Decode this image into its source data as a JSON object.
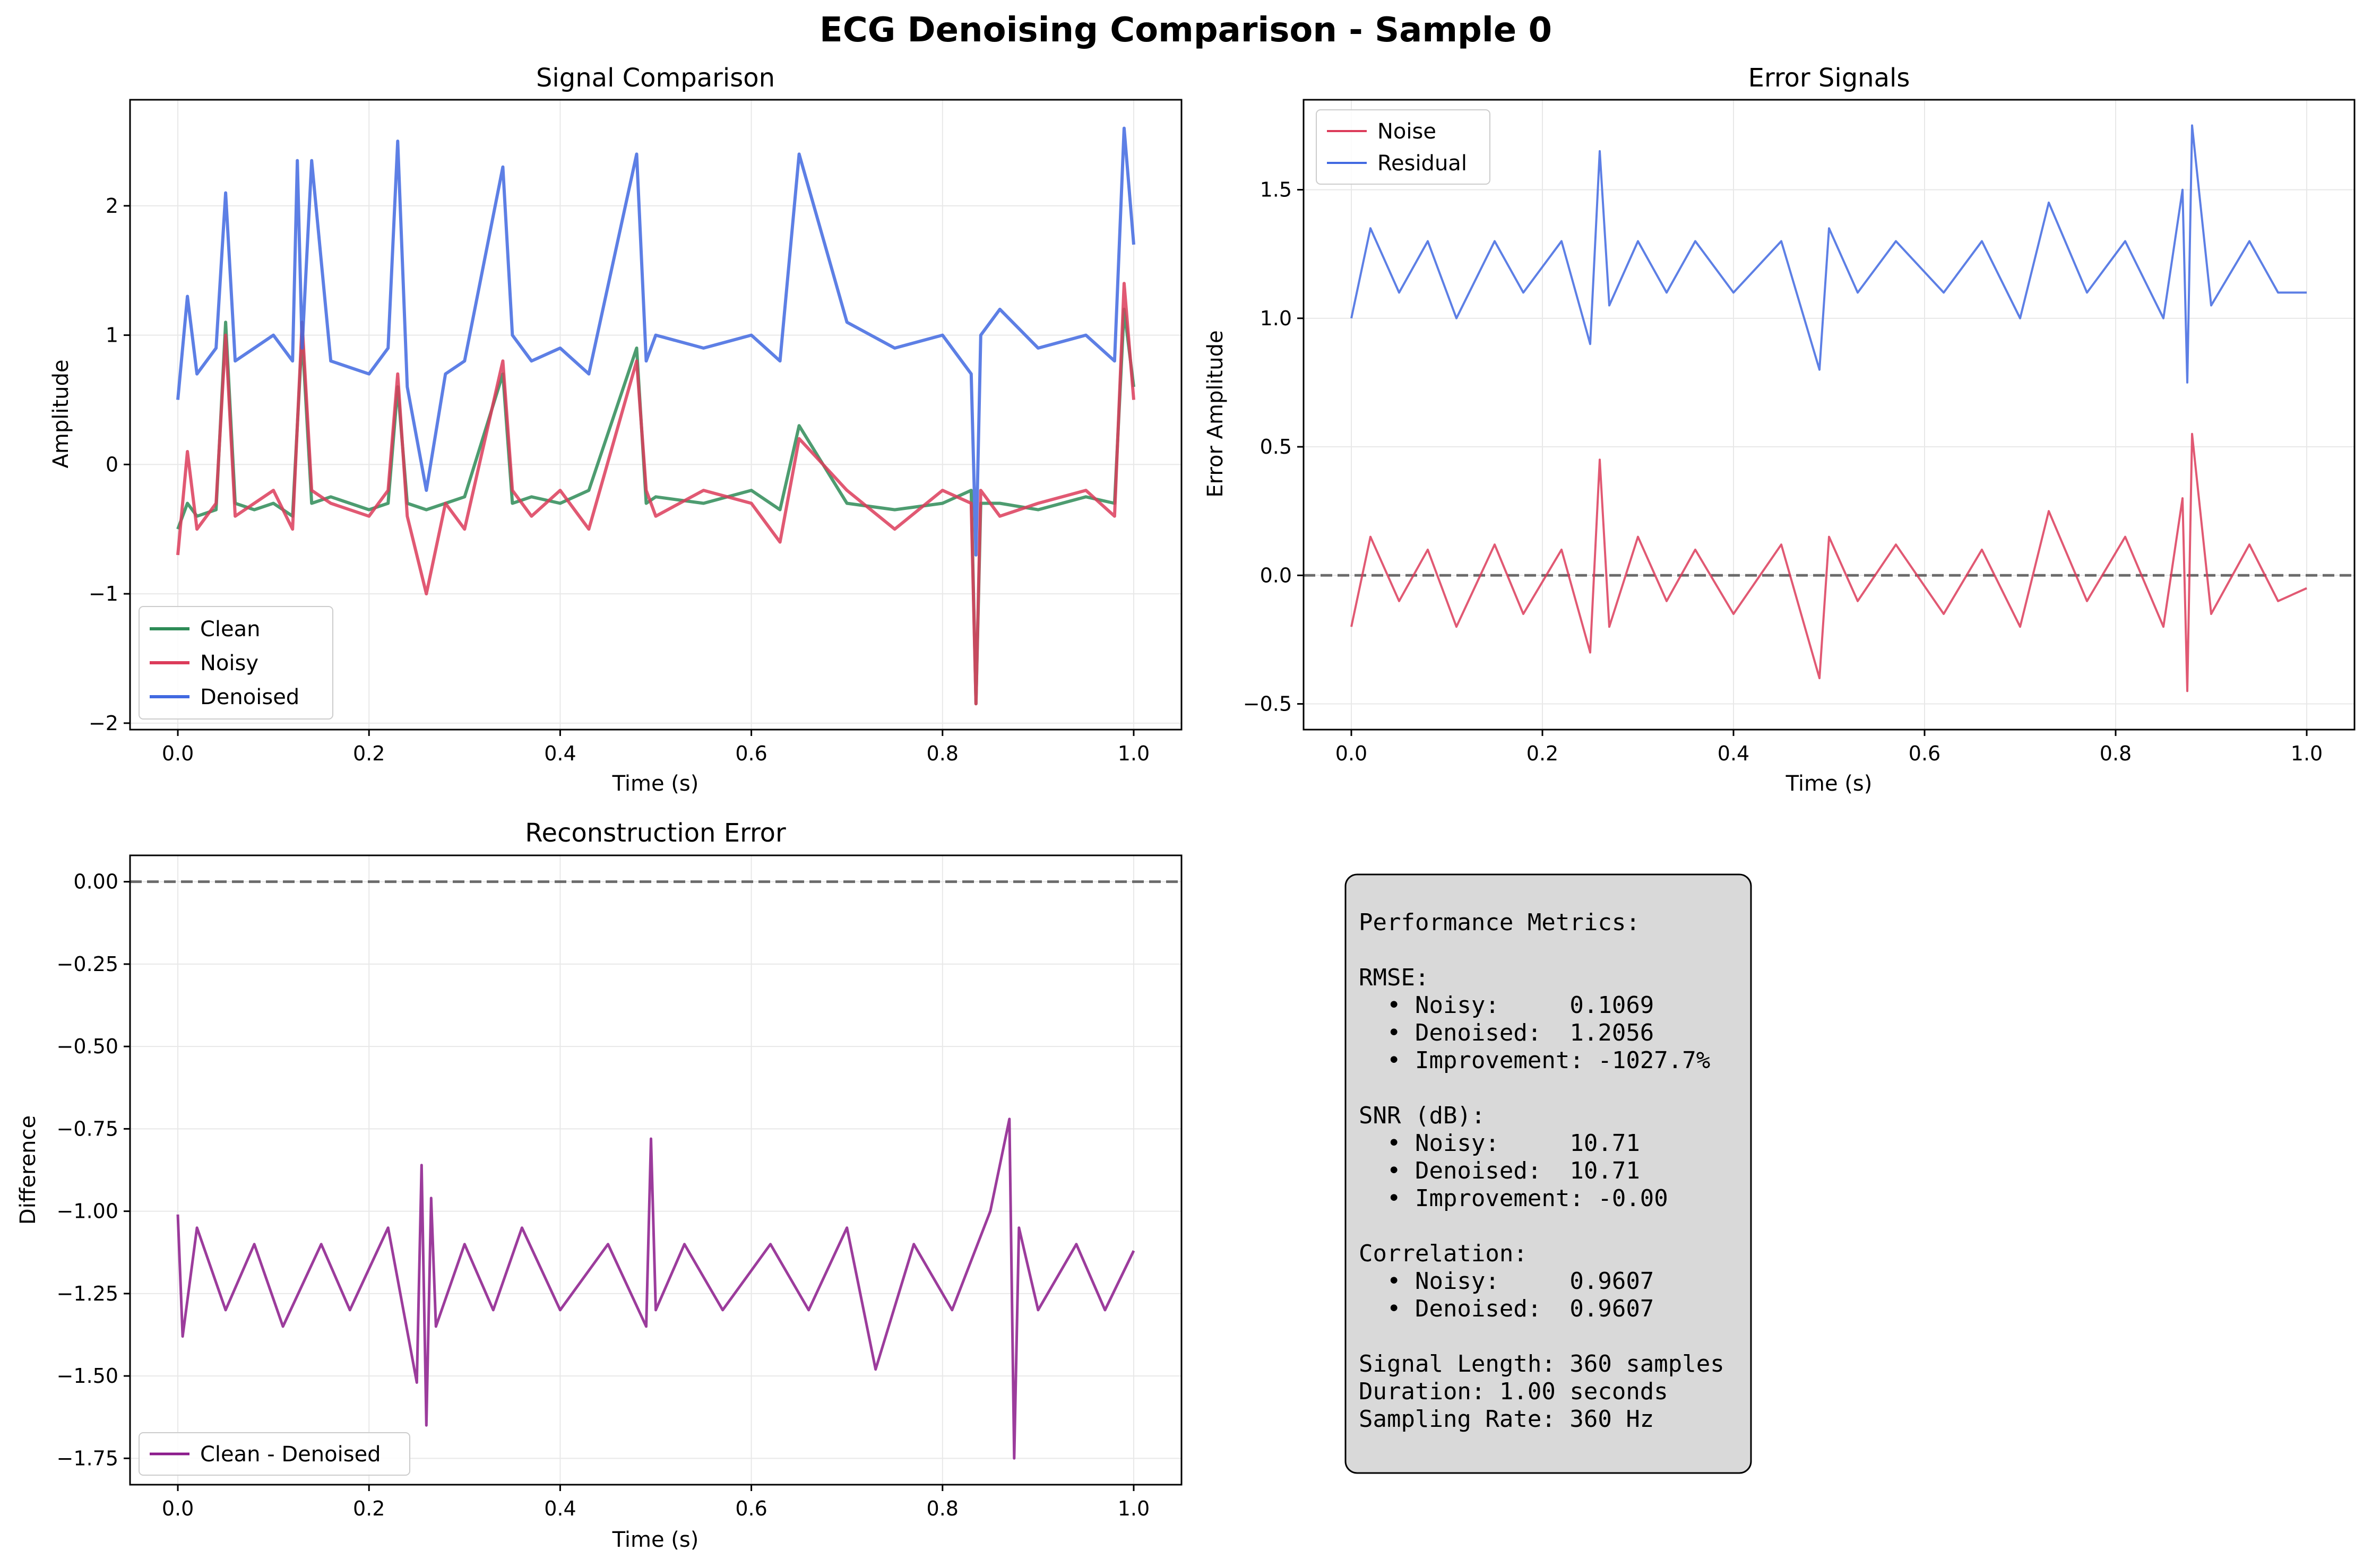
{
  "figure": {
    "title": "ECG Denoising Comparison - Sample 0"
  },
  "chart_data": [
    {
      "type": "line",
      "title": "Signal Comparison",
      "xlabel": "Time (s)",
      "ylabel": "Amplitude",
      "xlim": [
        -0.05,
        1.05
      ],
      "ylim": [
        -2.05,
        2.82
      ],
      "xticks": [
        0.0,
        0.2,
        0.4,
        0.6,
        0.8,
        1.0
      ],
      "xtick_labels": [
        "0.0",
        "0.2",
        "0.4",
        "0.6",
        "0.8",
        "1.0"
      ],
      "yticks": [
        -2,
        -1,
        0,
        1,
        2
      ],
      "ytick_labels": [
        "−2",
        "−1",
        "0",
        "1",
        "2"
      ],
      "grid": true,
      "legend_position": "lower-left",
      "series": [
        {
          "name": "Clean",
          "color": "#2e8b57",
          "x": [
            0.0,
            0.01,
            0.02,
            0.04,
            0.05,
            0.06,
            0.08,
            0.1,
            0.12,
            0.13,
            0.14,
            0.16,
            0.2,
            0.22,
            0.23,
            0.24,
            0.26,
            0.28,
            0.3,
            0.34,
            0.35,
            0.37,
            0.4,
            0.43,
            0.48,
            0.49,
            0.5,
            0.55,
            0.6,
            0.63,
            0.65,
            0.7,
            0.75,
            0.8,
            0.83,
            0.835,
            0.84,
            0.86,
            0.9,
            0.95,
            0.98,
            0.99,
            1.0
          ],
          "y": [
            -0.5,
            -0.3,
            -0.4,
            -0.35,
            1.1,
            -0.3,
            -0.35,
            -0.3,
            -0.4,
            1.0,
            -0.3,
            -0.25,
            -0.35,
            -0.3,
            0.6,
            -0.3,
            -0.35,
            -0.3,
            -0.25,
            0.7,
            -0.3,
            -0.25,
            -0.3,
            -0.2,
            0.9,
            -0.3,
            -0.25,
            -0.3,
            -0.2,
            -0.35,
            0.3,
            -0.3,
            -0.35,
            -0.3,
            -0.2,
            -1.85,
            -0.3,
            -0.3,
            -0.35,
            -0.25,
            -0.3,
            1.2,
            0.6
          ]
        },
        {
          "name": "Noisy",
          "color": "#dc3c5a",
          "x": [
            0.0,
            0.01,
            0.02,
            0.04,
            0.05,
            0.06,
            0.08,
            0.1,
            0.12,
            0.13,
            0.14,
            0.16,
            0.2,
            0.22,
            0.23,
            0.24,
            0.26,
            0.28,
            0.3,
            0.34,
            0.35,
            0.37,
            0.4,
            0.43,
            0.48,
            0.49,
            0.5,
            0.55,
            0.6,
            0.63,
            0.65,
            0.7,
            0.75,
            0.8,
            0.83,
            0.835,
            0.84,
            0.86,
            0.9,
            0.95,
            0.98,
            0.99,
            1.0
          ],
          "y": [
            -0.7,
            0.1,
            -0.5,
            -0.3,
            1.0,
            -0.4,
            -0.3,
            -0.2,
            -0.5,
            1.1,
            -0.2,
            -0.3,
            -0.4,
            -0.2,
            0.7,
            -0.4,
            -1.0,
            -0.3,
            -0.5,
            0.8,
            -0.2,
            -0.4,
            -0.2,
            -0.5,
            0.8,
            -0.2,
            -0.4,
            -0.2,
            -0.3,
            -0.6,
            0.2,
            -0.2,
            -0.5,
            -0.2,
            -0.3,
            -1.85,
            -0.2,
            -0.4,
            -0.3,
            -0.2,
            -0.4,
            1.4,
            0.5
          ]
        },
        {
          "name": "Denoised",
          "color": "#4169e1",
          "x": [
            0.0,
            0.01,
            0.02,
            0.04,
            0.05,
            0.06,
            0.08,
            0.1,
            0.12,
            0.125,
            0.13,
            0.14,
            0.16,
            0.2,
            0.22,
            0.23,
            0.24,
            0.26,
            0.28,
            0.3,
            0.34,
            0.35,
            0.37,
            0.4,
            0.43,
            0.48,
            0.49,
            0.5,
            0.55,
            0.6,
            0.63,
            0.65,
            0.7,
            0.75,
            0.8,
            0.83,
            0.835,
            0.84,
            0.86,
            0.9,
            0.95,
            0.98,
            0.99,
            1.0
          ],
          "y": [
            0.5,
            1.3,
            0.7,
            0.9,
            2.1,
            0.8,
            0.9,
            1.0,
            0.8,
            2.35,
            0.9,
            2.35,
            0.8,
            0.7,
            0.9,
            2.5,
            0.6,
            -0.2,
            0.7,
            0.8,
            2.3,
            1.0,
            0.8,
            0.9,
            0.7,
            2.4,
            0.8,
            1.0,
            0.9,
            1.0,
            0.8,
            2.4,
            1.1,
            0.9,
            1.0,
            0.7,
            -0.7,
            1.0,
            1.2,
            0.9,
            1.0,
            0.8,
            2.6,
            1.7
          ]
        }
      ]
    },
    {
      "type": "line",
      "title": "Error Signals",
      "xlabel": "Time (s)",
      "ylabel": "Error Amplitude",
      "xlim": [
        -0.05,
        1.05
      ],
      "ylim": [
        -0.6,
        1.85
      ],
      "xticks": [
        0.0,
        0.2,
        0.4,
        0.6,
        0.8,
        1.0
      ],
      "xtick_labels": [
        "0.0",
        "0.2",
        "0.4",
        "0.6",
        "0.8",
        "1.0"
      ],
      "yticks": [
        -0.5,
        0.0,
        0.5,
        1.0,
        1.5
      ],
      "ytick_labels": [
        "−0.5",
        "0.0",
        "0.5",
        "1.0",
        "1.5"
      ],
      "grid": true,
      "reference_line_y": 0.0,
      "legend_position": "upper-left",
      "series": [
        {
          "name": "Noise",
          "color": "#dc3c5a",
          "x": [
            0.0,
            0.02,
            0.05,
            0.08,
            0.11,
            0.15,
            0.18,
            0.22,
            0.25,
            0.26,
            0.27,
            0.3,
            0.33,
            0.36,
            0.4,
            0.45,
            0.49,
            0.5,
            0.53,
            0.57,
            0.62,
            0.66,
            0.7,
            0.73,
            0.77,
            0.81,
            0.85,
            0.87,
            0.875,
            0.88,
            0.9,
            0.94,
            0.97,
            1.0
          ],
          "y": [
            -0.2,
            0.15,
            -0.1,
            0.1,
            -0.2,
            0.12,
            -0.15,
            0.1,
            -0.3,
            0.45,
            -0.2,
            0.15,
            -0.1,
            0.1,
            -0.15,
            0.12,
            -0.4,
            0.15,
            -0.1,
            0.12,
            -0.15,
            0.1,
            -0.2,
            0.25,
            -0.1,
            0.15,
            -0.2,
            0.3,
            -0.45,
            0.55,
            -0.15,
            0.12,
            -0.1,
            -0.05
          ]
        },
        {
          "name": "Residual",
          "color": "#4169e1",
          "x": [
            0.0,
            0.02,
            0.05,
            0.08,
            0.11,
            0.15,
            0.18,
            0.22,
            0.25,
            0.26,
            0.27,
            0.3,
            0.33,
            0.36,
            0.4,
            0.45,
            0.49,
            0.5,
            0.53,
            0.57,
            0.62,
            0.66,
            0.7,
            0.73,
            0.77,
            0.81,
            0.85,
            0.87,
            0.875,
            0.88,
            0.9,
            0.94,
            0.97,
            1.0
          ],
          "y": [
            1.0,
            1.35,
            1.1,
            1.3,
            1.0,
            1.3,
            1.1,
            1.3,
            0.9,
            1.65,
            1.05,
            1.3,
            1.1,
            1.3,
            1.1,
            1.3,
            0.8,
            1.35,
            1.1,
            1.3,
            1.1,
            1.3,
            1.0,
            1.45,
            1.1,
            1.3,
            1.0,
            1.5,
            0.75,
            1.75,
            1.05,
            1.3,
            1.1,
            1.1
          ]
        }
      ]
    },
    {
      "type": "line",
      "title": "Reconstruction Error",
      "xlabel": "Time (s)",
      "ylabel": "Difference",
      "xlim": [
        -0.05,
        1.05
      ],
      "ylim": [
        -1.83,
        0.08
      ],
      "xticks": [
        0.0,
        0.2,
        0.4,
        0.6,
        0.8,
        1.0
      ],
      "xtick_labels": [
        "0.0",
        "0.2",
        "0.4",
        "0.6",
        "0.8",
        "1.0"
      ],
      "yticks": [
        0.0,
        -0.25,
        -0.5,
        -0.75,
        -1.0,
        -1.25,
        -1.5,
        -1.75
      ],
      "ytick_labels": [
        "0.00",
        "−0.25",
        "−0.50",
        "−0.75",
        "−1.00",
        "−1.25",
        "−1.50",
        "−1.75"
      ],
      "grid": true,
      "reference_line_y": 0.0,
      "legend_position": "lower-left",
      "series": [
        {
          "name": "Clean - Denoised",
          "color": "#8b1a8b",
          "x": [
            0.0,
            0.005,
            0.02,
            0.05,
            0.08,
            0.11,
            0.15,
            0.18,
            0.22,
            0.25,
            0.255,
            0.26,
            0.265,
            0.27,
            0.3,
            0.33,
            0.36,
            0.4,
            0.45,
            0.49,
            0.495,
            0.5,
            0.53,
            0.57,
            0.62,
            0.66,
            0.7,
            0.73,
            0.77,
            0.81,
            0.85,
            0.87,
            0.875,
            0.88,
            0.9,
            0.94,
            0.97,
            1.0
          ],
          "y": [
            -1.01,
            -1.38,
            -1.05,
            -1.3,
            -1.1,
            -1.35,
            -1.1,
            -1.3,
            -1.05,
            -1.52,
            -0.86,
            -1.65,
            -0.96,
            -1.35,
            -1.1,
            -1.3,
            -1.05,
            -1.3,
            -1.1,
            -1.35,
            -0.78,
            -1.3,
            -1.1,
            -1.3,
            -1.1,
            -1.3,
            -1.05,
            -1.48,
            -1.1,
            -1.3,
            -1.0,
            -0.72,
            -1.75,
            -1.05,
            -1.3,
            -1.1,
            -1.3,
            -1.12
          ]
        }
      ]
    }
  ],
  "metrics_panel": {
    "lines": [
      "Performance Metrics:",
      "",
      "RMSE:",
      "  • Noisy:     0.1069",
      "  • Denoised:  1.2056",
      "  • Improvement: -1027.7%",
      "",
      "SNR (dB):",
      "  • Noisy:     10.71",
      "  • Denoised:  10.71",
      "  • Improvement: -0.00",
      "",
      "Correlation:",
      "  • Noisy:     0.9607",
      "  • Denoised:  0.9607",
      "",
      "Signal Length: 360 samples",
      "Duration: 1.00 seconds",
      "Sampling Rate: 360 Hz"
    ]
  }
}
